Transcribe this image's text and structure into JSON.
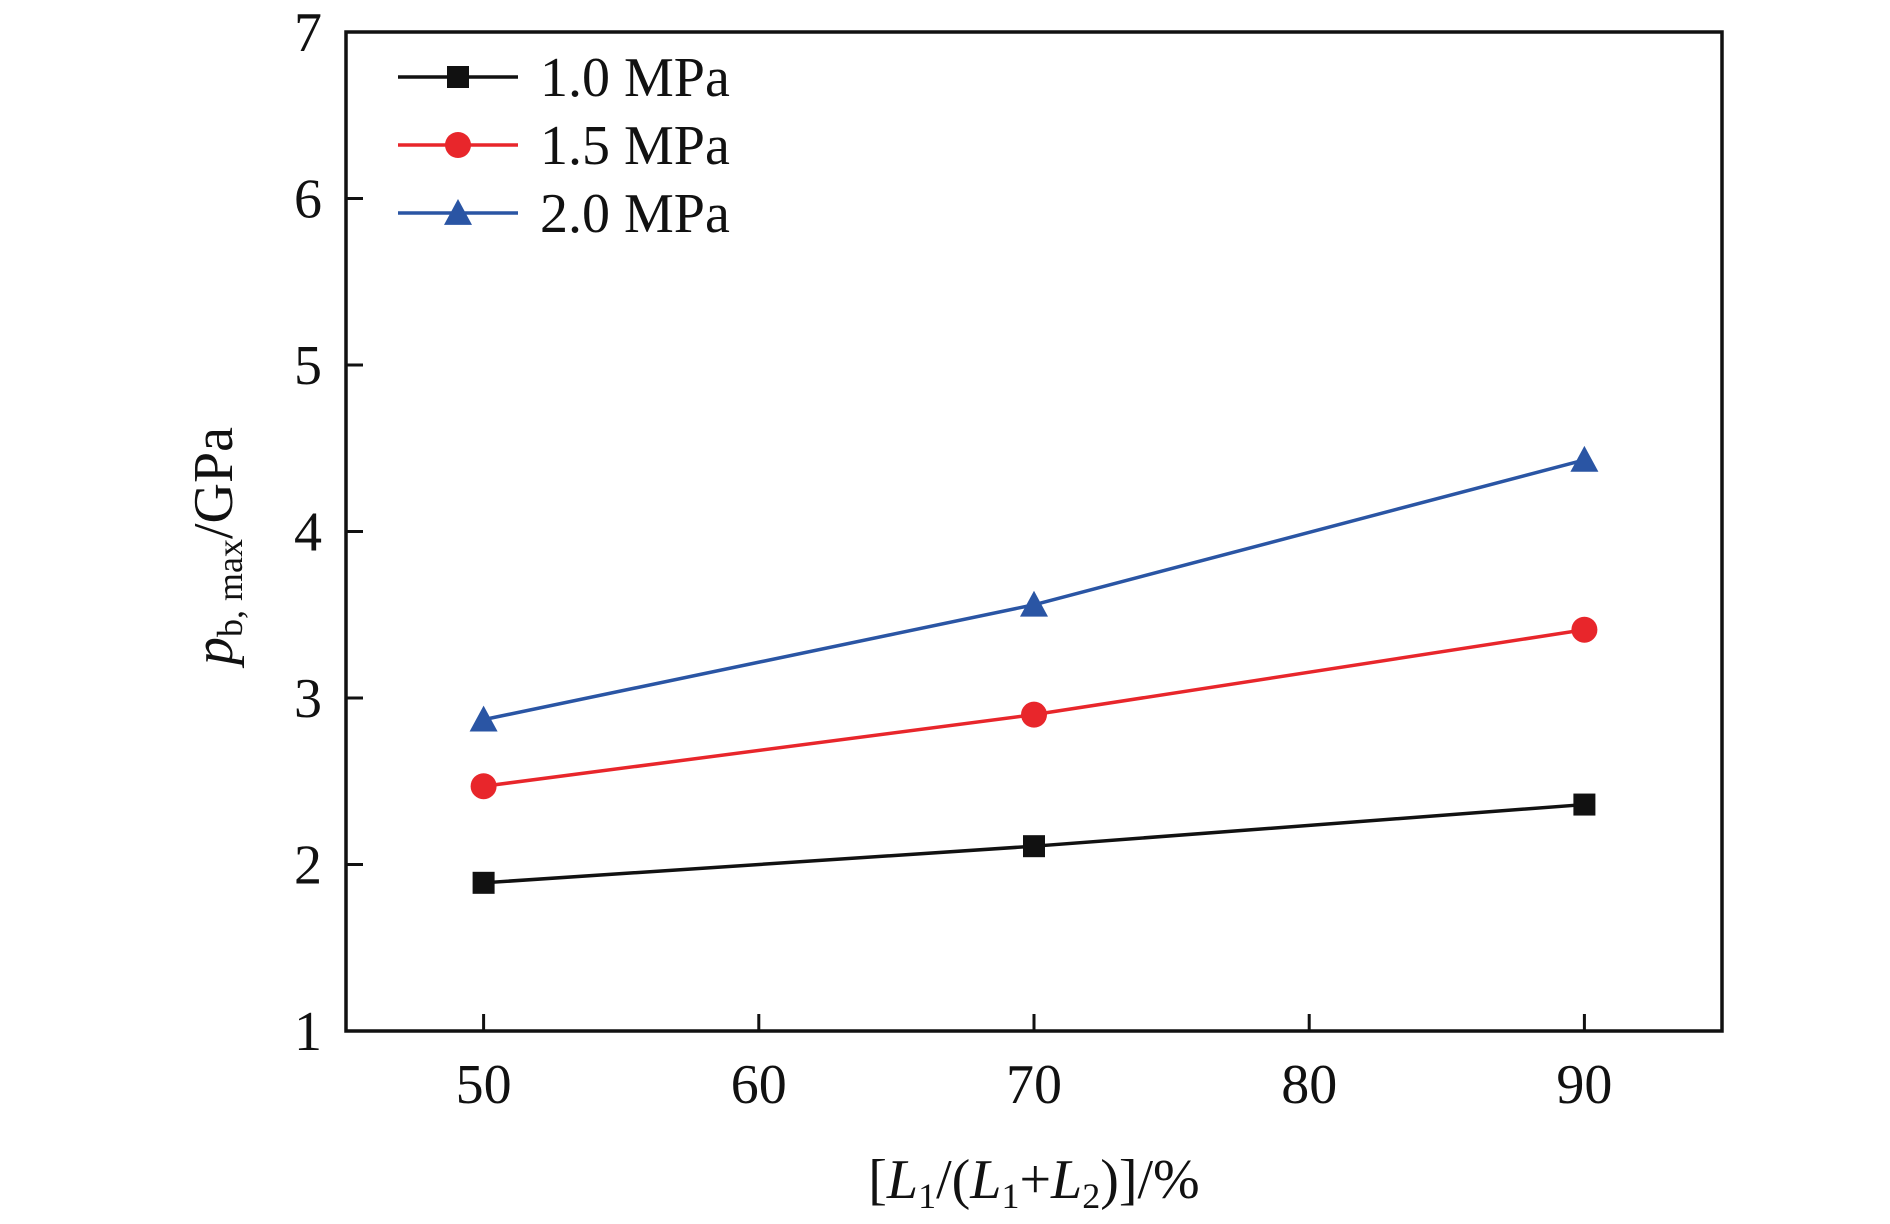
{
  "chart_data": {
    "type": "line",
    "title": "",
    "xlabel": {
      "prefix": "[",
      "L1": "L",
      "sub1": "1",
      "mid": "/(",
      "L1b": "L",
      "sub1b": "1",
      "plus": "+",
      "L2": "L",
      "sub2": "2",
      "suffix": ")]/%"
    },
    "ylabel": {
      "var": "p",
      "sub": "b, max",
      "unit": "/GPa"
    },
    "x": [
      50,
      70,
      90
    ],
    "xlim": [
      45,
      95
    ],
    "ylim": [
      1,
      7
    ],
    "xticks": [
      "50",
      "60",
      "70",
      "80",
      "90"
    ],
    "yticks": [
      "1",
      "2",
      "3",
      "4",
      "5",
      "6",
      "7"
    ],
    "grid": false,
    "legend_position": "top-left",
    "series": [
      {
        "name": "1.0 MPa",
        "values": [
          1.89,
          2.11,
          2.36
        ],
        "color": "#111111",
        "marker": "square"
      },
      {
        "name": "1.5 MPa",
        "values": [
          2.47,
          2.9,
          3.41
        ],
        "color": "#e8262b",
        "marker": "circle"
      },
      {
        "name": "2.0 MPa",
        "values": [
          2.87,
          3.56,
          4.43
        ],
        "color": "#2a55a4",
        "marker": "triangle"
      }
    ]
  }
}
